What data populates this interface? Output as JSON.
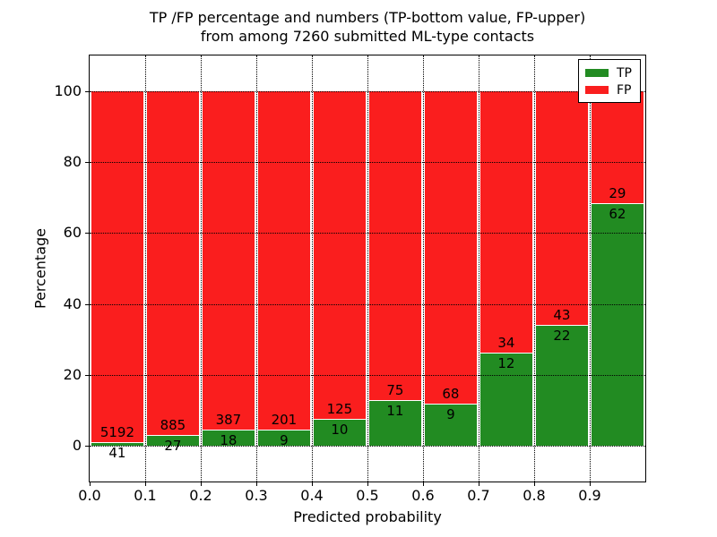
{
  "figure": {
    "background": "#ffffff"
  },
  "chart_data": {
    "type": "bar",
    "stacked": true,
    "normalized_to_percent": true,
    "title_line1": "TP /FP percentage and numbers (TP-bottom value, FP-upper)",
    "title_line2": "from among 7260 submitted ML-type contacts",
    "xlabel": "Predicted probability",
    "ylabel": "Percentage",
    "x_tick_labels": [
      "0.0",
      "0.1",
      "0.2",
      "0.3",
      "0.4",
      "0.5",
      "0.6",
      "0.7",
      "0.8",
      "0.9"
    ],
    "y_tick_values": [
      0,
      20,
      40,
      60,
      80,
      100
    ],
    "xlim": [
      0.0,
      1.0
    ],
    "ylim": [
      -10,
      110
    ],
    "bin_width": 0.1,
    "grid": "dotted black, both axes",
    "legend": {
      "position": "upper right",
      "labels": [
        "TP",
        "FP"
      ]
    },
    "series": [
      {
        "name": "TP",
        "color": "#228B22",
        "counts": [
          41,
          27,
          18,
          9,
          10,
          11,
          9,
          12,
          22,
          62
        ]
      },
      {
        "name": "FP",
        "color": "#FA1E1E",
        "counts": [
          5192,
          885,
          387,
          201,
          125,
          75,
          68,
          34,
          43,
          29
        ]
      }
    ],
    "tp_percent_by_bin": [
      0.78,
      2.96,
      4.44,
      4.29,
      7.41,
      12.79,
      11.69,
      26.09,
      33.85,
      68.13
    ],
    "total_contacts": 7260
  }
}
